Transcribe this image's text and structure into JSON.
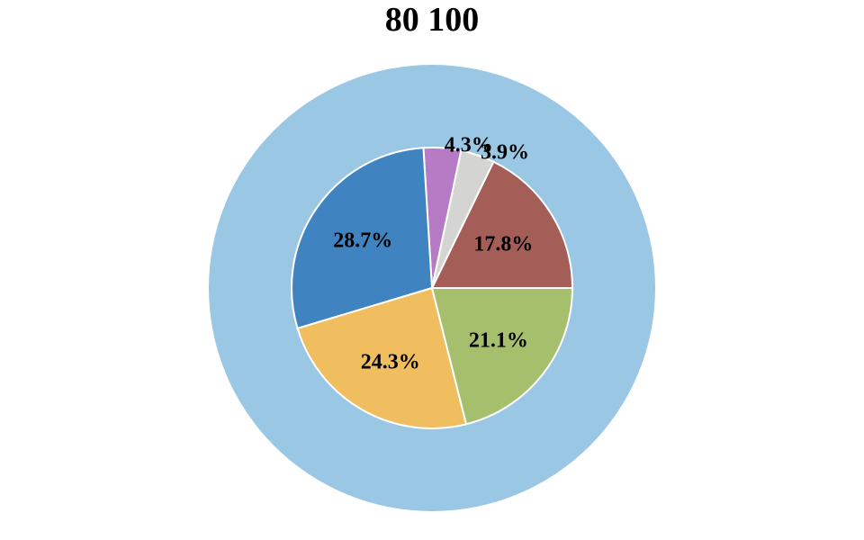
{
  "chart_data": {
    "type": "pie",
    "title": "80 100",
    "outer_ring": {
      "color": "#9ac7e4"
    },
    "slices": [
      {
        "label": "17.8%",
        "value": 17.8,
        "color": "#a45e57",
        "label_position": "inside"
      },
      {
        "label": "3.9%",
        "value": 3.9,
        "color": "#d4d4d2",
        "label_position": "outside"
      },
      {
        "label": "4.3%",
        "value": 4.3,
        "color": "#b77bc6",
        "label_position": "outside"
      },
      {
        "label": "28.7%",
        "value": 28.7,
        "color": "#3f84c1",
        "label_position": "inside"
      },
      {
        "label": "24.3%",
        "value": 24.3,
        "color": "#f0be5e",
        "label_position": "inside"
      },
      {
        "label": "21.1%",
        "value": 21.1,
        "color": "#a6bf6c",
        "label_position": "inside"
      }
    ]
  }
}
